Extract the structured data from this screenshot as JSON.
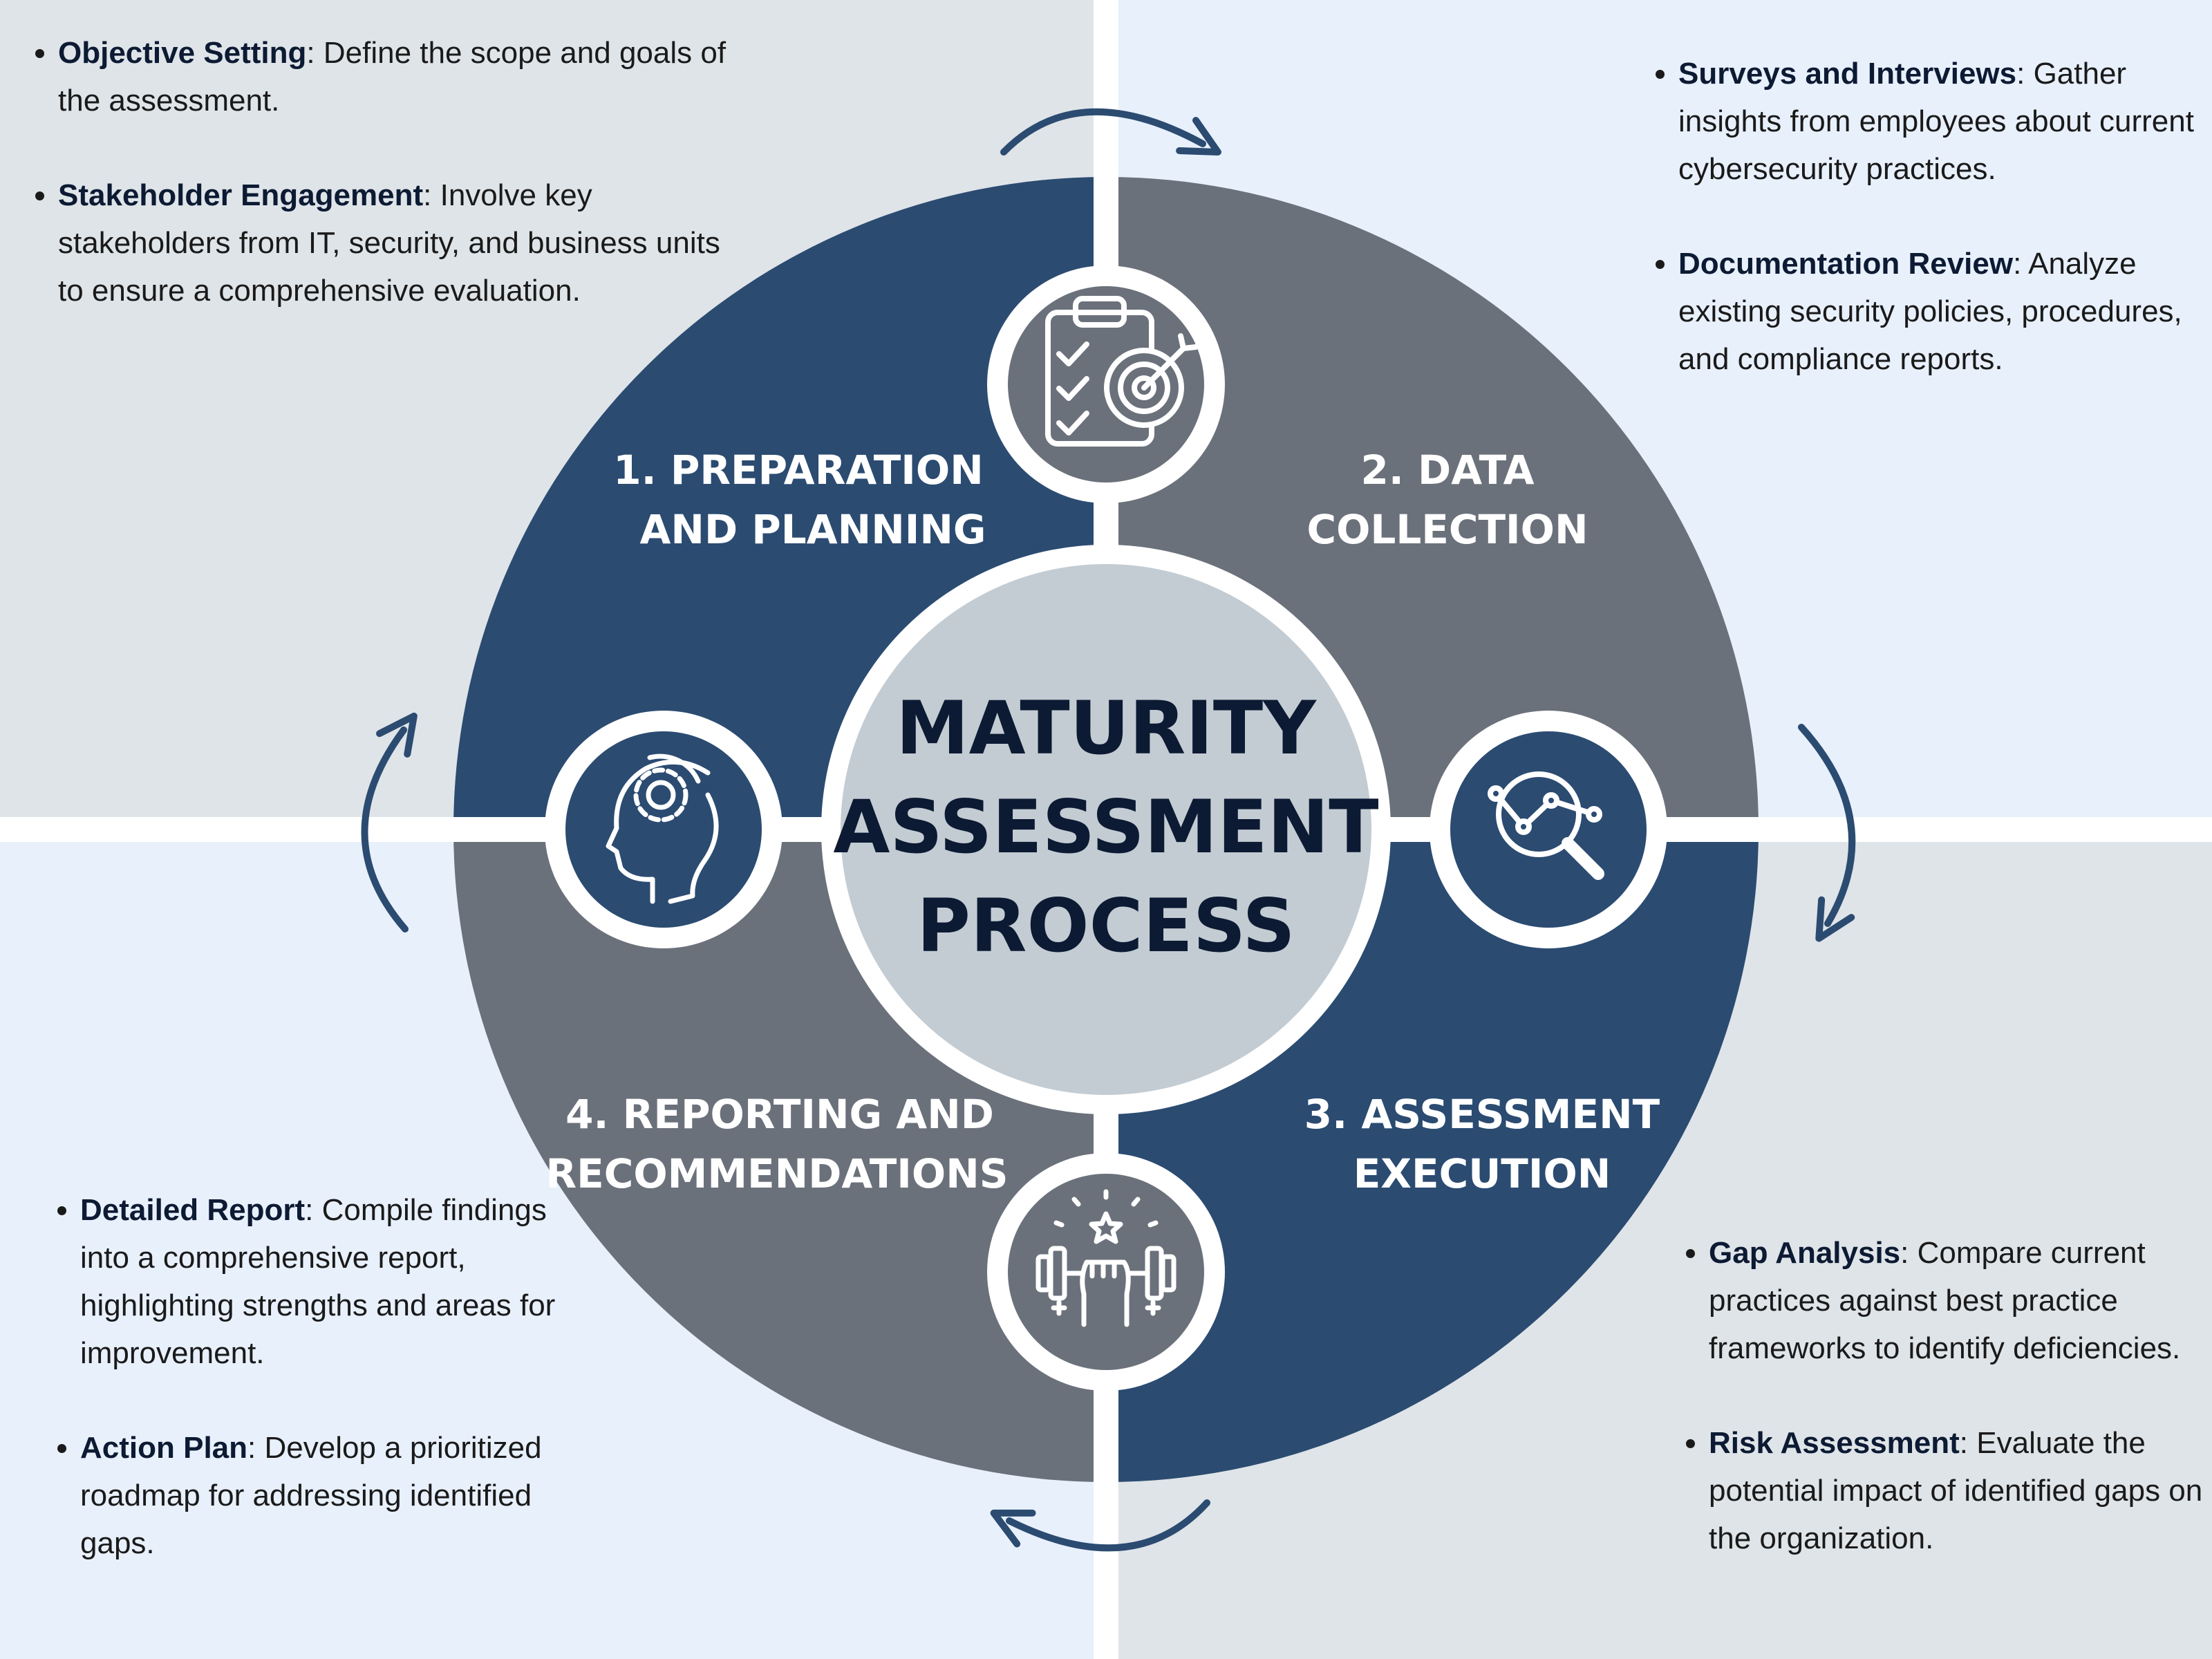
{
  "center_title": [
    "MATURITY",
    "ASSESSMENT",
    "PROCESS"
  ],
  "phases": [
    {
      "title_lines": [
        "1.  PREPARATION",
        "AND PLANNING"
      ],
      "icon": "clipboard-target-icon",
      "bullets": [
        {
          "term": "Objective Setting",
          "text": ": Define the scope and goals of the assessment."
        },
        {
          "term": "Stakeholder Engagement",
          "text": ": Involve key stakeholders from IT, security, and business units to ensure a comprehensive evaluation."
        }
      ]
    },
    {
      "title_lines": [
        "2. DATA",
        "COLLECTION"
      ],
      "icon": "analytics-magnifier-icon",
      "bullets": [
        {
          "term": "Surveys and Interviews",
          "text": ": Gather insights from employees about current cybersecurity practices."
        },
        {
          "term": "Documentation Review",
          "text": ": Analyze existing security policies, procedures, and compliance reports."
        }
      ]
    },
    {
      "title_lines": [
        "3. ASSESSMENT",
        "EXECUTION"
      ],
      "icon": "strength-fist-dumbbell-icon",
      "bullets": [
        {
          "term": "Gap Analysis",
          "text": ": Compare current practices against best practice frameworks to identify deficiencies."
        },
        {
          "term": "Risk Assessment",
          "text": ": Evaluate the potential impact of identified gaps on the organization."
        }
      ]
    },
    {
      "title_lines": [
        "4. REPORTING AND",
        "RECOMMENDATIONS"
      ],
      "icon": "head-gear-icon",
      "bullets": [
        {
          "term": "Detailed Report",
          "text": ": Compile findings into a comprehensive report, highlighting strengths and areas for improvement."
        },
        {
          "term": "Action Plan",
          "text": ": Develop a prioritized roadmap for addressing identified gaps."
        }
      ]
    }
  ],
  "colors": {
    "navy": "#2b4b71",
    "slate": "#6b717b",
    "center": "#c3ccd3",
    "title_text": "#0c1a33",
    "arrow": "#2b4b71"
  }
}
